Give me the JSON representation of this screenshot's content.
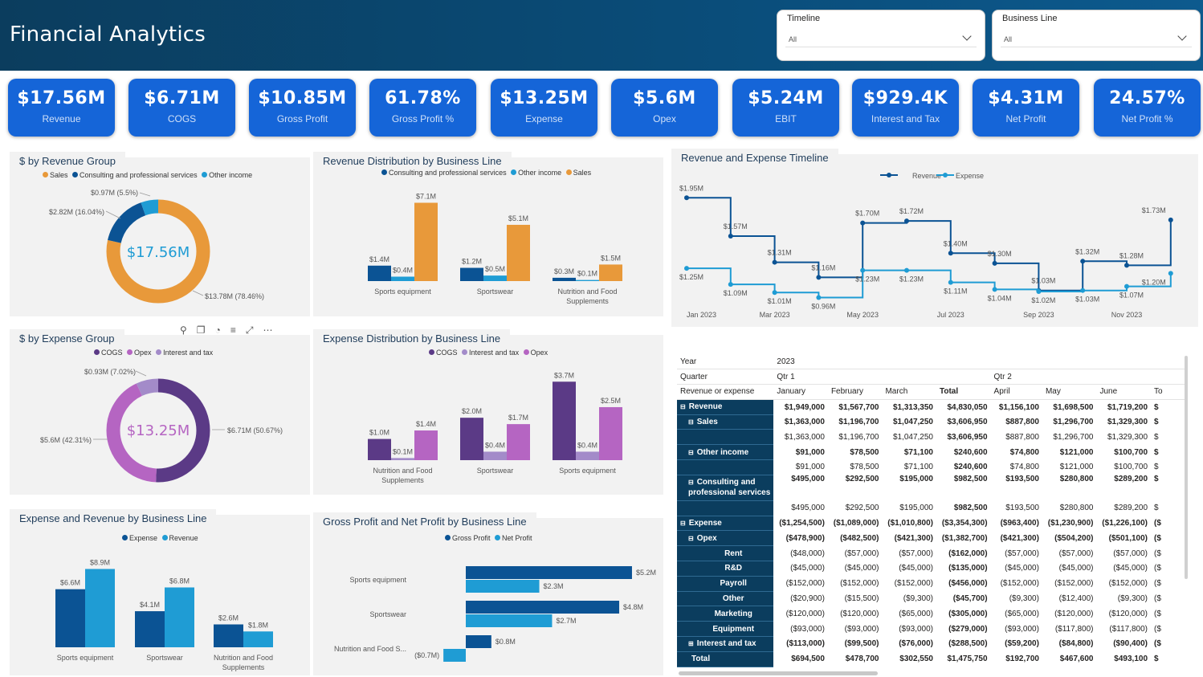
{
  "header": {
    "title": "Financial Analytics"
  },
  "slicers": [
    {
      "label": "Timeline",
      "value": "All"
    },
    {
      "label": "Business Line",
      "value": "All"
    }
  ],
  "kpis": [
    {
      "value": "$17.56M",
      "label": "Revenue"
    },
    {
      "value": "$6.71M",
      "label": "COGS"
    },
    {
      "value": "$10.85M",
      "label": "Gross Profit"
    },
    {
      "value": "61.78%",
      "label": "Gross Profit %"
    },
    {
      "value": "$13.25M",
      "label": "Expense"
    },
    {
      "value": "$5.6M",
      "label": "Opex"
    },
    {
      "value": "$5.24M",
      "label": "EBIT"
    },
    {
      "value": "$929.4K",
      "label": "Interest and Tax"
    },
    {
      "value": "$4.31M",
      "label": "Net Profit"
    },
    {
      "value": "24.57%",
      "label": "Net Profit %"
    }
  ],
  "revenue_group": {
    "title": "$ by Revenue Group",
    "legend": [
      "Sales",
      "Consulting and professional services",
      "Other income"
    ],
    "center": "$17.56M",
    "labels": [
      "$13.78M (78.46%)",
      "$2.82M (16.04%)",
      "$0.97M (5.5%)"
    ]
  },
  "expense_group": {
    "title": "$ by Expense Group",
    "legend": [
      "COGS",
      "Opex",
      "Interest and tax"
    ],
    "center": "$13.25M",
    "labels": [
      "$6.71M (50.67%)",
      "$5.6M (42.31%)",
      "$0.93M (7.02%)"
    ]
  },
  "rev_dist": {
    "title": "Revenue Distribution by Business Line",
    "legend": [
      "Consulting and professional services",
      "Other income",
      "Sales"
    ]
  },
  "exp_dist": {
    "title": "Expense Distribution by Business Line",
    "legend": [
      "COGS",
      "Interest and tax",
      "Opex"
    ]
  },
  "exp_rev": {
    "title": "Expense and Revenue by Business Line",
    "legend": [
      "Expense",
      "Revenue"
    ]
  },
  "gp_np": {
    "title": "Gross Profit and Net Profit by Business Line",
    "legend": [
      "Gross Profit",
      "Net Profit"
    ]
  },
  "timeline": {
    "title": "Revenue and Expense Timeline",
    "legend": [
      "Revenue",
      "Expense"
    ]
  },
  "colors": {
    "sales": "#e8993a",
    "consulting": "#0b5394",
    "other": "#1f9cd4",
    "cogs": "#5b3a86",
    "opex": "#b565c2",
    "interest": "#a38bc9",
    "navy": "#0b3d5e",
    "kpi": "#1565d8"
  },
  "chart_data": [
    {
      "type": "pie",
      "title": "$ by Revenue Group",
      "categories": [
        "Sales",
        "Consulting and professional services",
        "Other income"
      ],
      "values": [
        13.78,
        2.82,
        0.97
      ],
      "labels": [
        "$13.78M (78.46%)",
        "$2.82M (16.04%)",
        "$0.97M (5.5%)"
      ],
      "colors": [
        "#e8993a",
        "#0b5394",
        "#1f9cd4"
      ]
    },
    {
      "type": "pie",
      "title": "$ by Expense Group",
      "categories": [
        "COGS",
        "Opex",
        "Interest and tax"
      ],
      "values": [
        6.71,
        5.6,
        0.93
      ],
      "labels": [
        "$6.71M (50.67%)",
        "$5.6M (42.31%)",
        "$0.93M (7.02%)"
      ],
      "colors": [
        "#5b3a86",
        "#b565c2",
        "#a38bc9"
      ]
    },
    {
      "type": "bar",
      "title": "Revenue Distribution by Business Line",
      "categories": [
        "Sports equipment",
        "Sportswear",
        "Nutrition and Food Supplements"
      ],
      "series": [
        {
          "name": "Consulting and professional services",
          "values": [
            1.4,
            1.2,
            0.3
          ],
          "labels": [
            "$1.4M",
            "$1.2M",
            "$0.3M"
          ],
          "color": "#0b5394"
        },
        {
          "name": "Other income",
          "values": [
            0.4,
            0.5,
            0.1
          ],
          "labels": [
            "$0.4M",
            "$0.5M",
            "$0.1M"
          ],
          "color": "#1f9cd4"
        },
        {
          "name": "Sales",
          "values": [
            7.1,
            5.1,
            1.5
          ],
          "labels": [
            "$7.1M",
            "$5.1M",
            "$1.5M"
          ],
          "color": "#e8993a"
        }
      ],
      "ylim": [
        0,
        7.5
      ]
    },
    {
      "type": "bar",
      "title": "Expense Distribution by Business Line",
      "categories": [
        "Nutrition and Food Supplements",
        "Sportswear",
        "Sports equipment"
      ],
      "series": [
        {
          "name": "COGS",
          "values": [
            1.0,
            2.0,
            3.7
          ],
          "labels": [
            "$1.0M",
            "$2.0M",
            "$3.7M"
          ],
          "color": "#5b3a86"
        },
        {
          "name": "Interest and tax",
          "values": [
            0.1,
            0.4,
            0.4
          ],
          "labels": [
            "$0.1M",
            "$0.4M",
            "$0.4M"
          ],
          "color": "#a38bc9"
        },
        {
          "name": "Opex",
          "values": [
            1.4,
            1.7,
            2.5
          ],
          "labels": [
            "$1.4M",
            "$1.7M",
            "$2.5M"
          ],
          "color": "#b565c2"
        }
      ],
      "ylim": [
        0,
        3.9
      ]
    },
    {
      "type": "bar",
      "title": "Expense and Revenue by Business Line",
      "categories": [
        "Sports equipment",
        "Sportswear",
        "Nutrition and Food Supplements"
      ],
      "series": [
        {
          "name": "Expense",
          "values": [
            6.6,
            4.1,
            2.6
          ],
          "labels": [
            "$6.6M",
            "$4.1M",
            "$2.6M"
          ],
          "color": "#0b5394"
        },
        {
          "name": "Revenue",
          "values": [
            8.9,
            6.8,
            1.8
          ],
          "labels": [
            "$8.9M",
            "$6.8M",
            "$1.8M"
          ],
          "color": "#1f9cd4"
        }
      ],
      "ylim": [
        0,
        9.4
      ]
    },
    {
      "type": "bar",
      "orientation": "horizontal",
      "title": "Gross Profit and Net Profit by Business Line",
      "categories": [
        "Sports equipment",
        "Sportswear",
        "Nutrition and Food S..."
      ],
      "series": [
        {
          "name": "Gross Profit",
          "values": [
            5.2,
            4.8,
            0.8
          ],
          "labels": [
            "$5.2M",
            "$4.8M",
            "$0.8M"
          ],
          "color": "#0b5394"
        },
        {
          "name": "Net Profit",
          "values": [
            2.3,
            2.7,
            -0.7
          ],
          "labels": [
            "$2.3M",
            "$2.7M",
            "($0.7M)"
          ],
          "color": "#1f9cd4"
        }
      ],
      "xlim": [
        -0.75,
        5.5
      ]
    },
    {
      "type": "line",
      "title": "Revenue and Expense Timeline",
      "x": [
        "Jan 2023",
        "Feb 2023",
        "Mar 2023",
        "Apr 2023",
        "May 2023",
        "Jun 2023",
        "Jul 2023",
        "Aug 2023",
        "Sep 2023",
        "Oct 2023",
        "Nov 2023",
        "Dec 2023"
      ],
      "xticks": [
        "Jan 2023",
        "Mar 2023",
        "May 2023",
        "Jul 2023",
        "Sep 2023",
        "Nov 2023"
      ],
      "step": true,
      "series": [
        {
          "name": "Revenue",
          "values": [
            1.95,
            1.57,
            1.31,
            1.16,
            1.7,
            1.72,
            1.4,
            1.3,
            1.03,
            1.32,
            1.28,
            1.73
          ],
          "labels": [
            "$1.95M",
            "$1.57M",
            "$1.31M",
            "$1.16M",
            "$1.70M",
            "$1.72M",
            "$1.40M",
            "$1.30M",
            "$1.03M",
            "$1.32M",
            "$1.28M",
            "$1.73M"
          ],
          "color": "#0b5394"
        },
        {
          "name": "Expense",
          "values": [
            1.25,
            1.09,
            1.01,
            0.96,
            1.23,
            1.23,
            1.11,
            1.04,
            1.02,
            1.03,
            1.07,
            1.2
          ],
          "labels": [
            "$1.25M",
            "$1.09M",
            "$1.01M",
            "$0.96M",
            "$1.23M",
            "$1.23M",
            "$1.11M",
            "$1.04M",
            "$1.02M",
            "$1.03M",
            "$1.07M",
            "$1.20M"
          ],
          "color": "#1f9cd4"
        }
      ],
      "ylim": [
        0.9,
        2.0
      ]
    }
  ],
  "matrix": {
    "year_label": "Year",
    "year": "2023",
    "quarter_label": "Quarter",
    "q1": "Qtr 1",
    "q2": "Qtr 2",
    "row_header": "Revenue or expense",
    "columns": [
      "January",
      "February",
      "March",
      "Total",
      "April",
      "May",
      "June",
      "To"
    ],
    "rows": [
      {
        "label": "Revenue",
        "indent": 0,
        "expand": "⊟",
        "bold": true,
        "values": [
          "$1,949,000",
          "$1,567,700",
          "$1,313,350",
          "$4,830,050",
          "$1,156,100",
          "$1,698,500",
          "$1,719,200",
          "$"
        ]
      },
      {
        "label": "Sales",
        "indent": 1,
        "expand": "⊟",
        "bold": true,
        "values": [
          "$1,363,000",
          "$1,196,700",
          "$1,047,250",
          "$3,606,950",
          "$887,800",
          "$1,296,700",
          "$1,329,300",
          "$"
        ]
      },
      {
        "label": "",
        "indent": 2,
        "expand": "",
        "bold": false,
        "values": [
          "$1,363,000",
          "$1,196,700",
          "$1,047,250",
          "$3,606,950",
          "$887,800",
          "$1,296,700",
          "$1,329,300",
          "$"
        ]
      },
      {
        "label": "Other income",
        "indent": 1,
        "expand": "⊟",
        "bold": true,
        "values": [
          "$91,000",
          "$78,500",
          "$71,100",
          "$240,600",
          "$74,800",
          "$121,000",
          "$100,700",
          "$"
        ]
      },
      {
        "label": "",
        "indent": 2,
        "expand": "",
        "bold": false,
        "values": [
          "$91,000",
          "$78,500",
          "$71,100",
          "$240,600",
          "$74,800",
          "$121,000",
          "$100,700",
          "$"
        ]
      },
      {
        "label": "Consulting and professional services",
        "indent": 1,
        "expand": "⊟",
        "bold": true,
        "tall": true,
        "values": [
          "$495,000",
          "$292,500",
          "$195,000",
          "$982,500",
          "$193,500",
          "$280,800",
          "$289,200",
          "$"
        ]
      },
      {
        "label": "",
        "indent": 2,
        "expand": "",
        "bold": false,
        "values": [
          "$495,000",
          "$292,500",
          "$195,000",
          "$982,500",
          "$193,500",
          "$280,800",
          "$289,200",
          "$"
        ]
      },
      {
        "label": "Expense",
        "indent": 0,
        "expand": "⊟",
        "bold": true,
        "values": [
          "($1,254,500)",
          "($1,089,000)",
          "($1,010,800)",
          "($3,354,300)",
          "($963,400)",
          "($1,230,900)",
          "($1,226,100)",
          "($"
        ]
      },
      {
        "label": "Opex",
        "indent": 1,
        "expand": "⊟",
        "bold": true,
        "values": [
          "($478,900)",
          "($482,500)",
          "($421,300)",
          "($1,382,700)",
          "($421,300)",
          "($504,200)",
          "($501,100)",
          "($"
        ]
      },
      {
        "label": "Rent",
        "indent": 2,
        "expand": "",
        "bold": false,
        "values": [
          "($48,000)",
          "($57,000)",
          "($57,000)",
          "($162,000)",
          "($57,000)",
          "($57,000)",
          "($57,000)",
          "($"
        ]
      },
      {
        "label": "R&D",
        "indent": 2,
        "expand": "",
        "bold": false,
        "values": [
          "($45,000)",
          "($45,000)",
          "($45,000)",
          "($135,000)",
          "($45,000)",
          "($45,000)",
          "($45,000)",
          "($"
        ]
      },
      {
        "label": "Payroll",
        "indent": 2,
        "expand": "",
        "bold": false,
        "values": [
          "($152,000)",
          "($152,000)",
          "($152,000)",
          "($456,000)",
          "($152,000)",
          "($152,000)",
          "($152,000)",
          "($"
        ]
      },
      {
        "label": "Other",
        "indent": 2,
        "expand": "",
        "bold": false,
        "values": [
          "($20,900)",
          "($15,500)",
          "($9,300)",
          "($45,700)",
          "($9,300)",
          "($12,400)",
          "($9,300)",
          "($"
        ]
      },
      {
        "label": "Marketing",
        "indent": 2,
        "expand": "",
        "bold": false,
        "values": [
          "($120,000)",
          "($120,000)",
          "($65,000)",
          "($305,000)",
          "($65,000)",
          "($120,000)",
          "($120,000)",
          "($"
        ]
      },
      {
        "label": "Equipment",
        "indent": 2,
        "expand": "",
        "bold": false,
        "values": [
          "($93,000)",
          "($93,000)",
          "($93,000)",
          "($279,000)",
          "($93,000)",
          "($117,800)",
          "($117,800)",
          "($"
        ]
      },
      {
        "label": "Interest and tax",
        "indent": 1,
        "expand": "⊞",
        "bold": true,
        "values": [
          "($113,000)",
          "($99,500)",
          "($76,000)",
          "($288,500)",
          "($59,200)",
          "($84,800)",
          "($90,400)",
          "($"
        ]
      },
      {
        "label": "Total",
        "indent": 0,
        "expand": "",
        "bold": true,
        "values": [
          "$694,500",
          "$478,700",
          "$302,550",
          "$1,475,750",
          "$192,700",
          "$467,600",
          "$493,100",
          "$"
        ]
      }
    ]
  }
}
